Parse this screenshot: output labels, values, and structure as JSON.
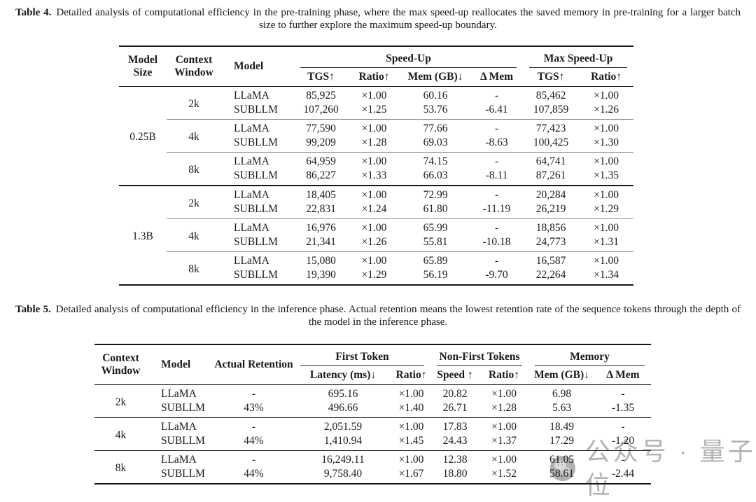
{
  "table4": {
    "caption_label": "Table 4.",
    "caption": "Detailed analysis of computational efficiency in the pre-training phase, where the max speed-up reallocates the saved memory in pre-training for a larger batch size to further explore the maximum speed-up boundary.",
    "header": {
      "model_size": "Model Size",
      "context_window": "Context Window",
      "model": "Model",
      "speed_up": "Speed-Up",
      "max_speed_up": "Max Speed-Up",
      "sub": [
        "TGS↑",
        "Ratio↑",
        "Mem (GB)↓",
        "Δ Mem",
        "TGS↑",
        "Ratio↑"
      ]
    },
    "blocks": [
      {
        "model_size": "0.25B",
        "groups": [
          {
            "context_window": "2k",
            "rows": [
              {
                "model": "LLaMA",
                "cells": [
                  "85,925",
                  "×1.00",
                  "60.16",
                  "-",
                  "85,462",
                  "×1.00"
                ]
              },
              {
                "model": "SUBLLM",
                "cells": [
                  "107,260",
                  "×1.25",
                  "53.76",
                  "-6.41",
                  "107,859",
                  "×1.26"
                ]
              }
            ]
          },
          {
            "context_window": "4k",
            "rows": [
              {
                "model": "LLaMA",
                "cells": [
                  "77,590",
                  "×1.00",
                  "77.66",
                  "-",
                  "77,423",
                  "×1.00"
                ]
              },
              {
                "model": "SUBLLM",
                "cells": [
                  "99,209",
                  "×1.28",
                  "69.03",
                  "-8.63",
                  "100,425",
                  "×1.30"
                ]
              }
            ]
          },
          {
            "context_window": "8k",
            "rows": [
              {
                "model": "LLaMA",
                "cells": [
                  "64,959",
                  "×1.00",
                  "74.15",
                  "-",
                  "64,741",
                  "×1.00"
                ]
              },
              {
                "model": "SUBLLM",
                "cells": [
                  "86,227",
                  "×1.33",
                  "66.03",
                  "-8.11",
                  "87,261",
                  "×1.35"
                ]
              }
            ]
          }
        ]
      },
      {
        "model_size": "1.3B",
        "groups": [
          {
            "context_window": "2k",
            "rows": [
              {
                "model": "LLaMA",
                "cells": [
                  "18,405",
                  "×1.00",
                  "72.99",
                  "-",
                  "20,284",
                  "×1.00"
                ]
              },
              {
                "model": "SUBLLM",
                "cells": [
                  "22,831",
                  "×1.24",
                  "61.80",
                  "-11.19",
                  "26,219",
                  "×1.29"
                ]
              }
            ]
          },
          {
            "context_window": "4k",
            "rows": [
              {
                "model": "LLaMA",
                "cells": [
                  "16,976",
                  "×1.00",
                  "65.99",
                  "-",
                  "18,856",
                  "×1.00"
                ]
              },
              {
                "model": "SUBLLM",
                "cells": [
                  "21,341",
                  "×1.26",
                  "55.81",
                  "-10.18",
                  "24,773",
                  "×1.31"
                ]
              }
            ]
          },
          {
            "context_window": "8k",
            "rows": [
              {
                "model": "LLaMA",
                "cells": [
                  "15,080",
                  "×1.00",
                  "65.89",
                  "-",
                  "16,587",
                  "×1.00"
                ]
              },
              {
                "model": "SUBLLM",
                "cells": [
                  "19,390",
                  "×1.29",
                  "56.19",
                  "-9.70",
                  "22,264",
                  "×1.34"
                ]
              }
            ]
          }
        ]
      }
    ]
  },
  "table5": {
    "caption_label": "Table 5.",
    "caption": "Detailed analysis of computational efficiency in the inference phase. Actual retention means the lowest retention rate of the sequence tokens through the depth of the model in the inference phase.",
    "header": {
      "context_window": "Context Window",
      "model": "Model",
      "actual_retention": "Actual Retention",
      "first_token": "First Token",
      "non_first_tokens": "Non-First Tokens",
      "memory": "Memory",
      "sub": [
        "Latency (ms)↓",
        "Ratio↑",
        "Speed ↑",
        "Ratio↑",
        "Mem (GB)↓",
        "Δ Mem"
      ]
    },
    "groups": [
      {
        "context_window": "2k",
        "rows": [
          {
            "model": "LLaMA",
            "retention": "-",
            "cells": [
              "695.16",
              "×1.00",
              "20.82",
              "×1.00",
              "6.98",
              "-"
            ]
          },
          {
            "model": "SUBLLM",
            "retention": "43%",
            "cells": [
              "496.66",
              "×1.40",
              "26.71",
              "×1.28",
              "5.63",
              "-1.35"
            ]
          }
        ]
      },
      {
        "context_window": "4k",
        "rows": [
          {
            "model": "LLaMA",
            "retention": "-",
            "cells": [
              "2,051.59",
              "×1.00",
              "17.83",
              "×1.00",
              "18.49",
              "-"
            ]
          },
          {
            "model": "SUBLLM",
            "retention": "44%",
            "cells": [
              "1,410.94",
              "×1.45",
              "24.43",
              "×1.37",
              "17.29",
              "-1.20"
            ]
          }
        ]
      },
      {
        "context_window": "8k",
        "rows": [
          {
            "model": "LLaMA",
            "retention": "-",
            "cells": [
              "16,249.11",
              "×1.00",
              "12.38",
              "×1.00",
              "61.05",
              "-"
            ]
          },
          {
            "model": "SUBLLM",
            "retention": "44%",
            "cells": [
              "9,758.40",
              "×1.67",
              "18.80",
              "×1.52",
              "58.61",
              "-2.44"
            ]
          }
        ]
      }
    ]
  },
  "watermark": {
    "text": "公众号 · 量子位",
    "logo": "qbitai-chat-bubbles",
    "color": "#a6a6a6"
  }
}
